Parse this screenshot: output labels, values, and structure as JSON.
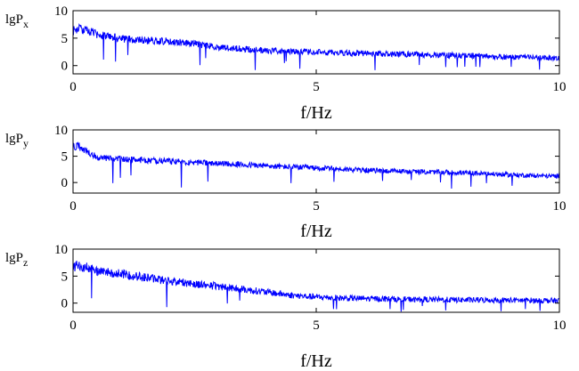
{
  "chart_data": [
    {
      "type": "line",
      "ylabel": "lgP",
      "ylabel_sub": "x",
      "xlabel": "f/Hz",
      "xlim": [
        0,
        10
      ],
      "ylim": [
        -1.5,
        10
      ],
      "xticks": [
        "0",
        "5",
        "10"
      ],
      "yticks": [
        "0",
        "5",
        "10"
      ],
      "grid": false,
      "series": [
        {
          "color": "#0000ff",
          "trend_x": [
            0,
            0.1,
            0.3,
            0.5,
            1,
            1.5,
            2,
            2.5,
            3,
            4,
            5,
            6,
            7,
            8,
            9,
            10
          ],
          "trend_y": [
            6.6,
            7.0,
            6.5,
            5.9,
            5.1,
            4.8,
            4.6,
            4.2,
            3.5,
            2.9,
            2.6,
            2.4,
            2.2,
            2.0,
            1.7,
            1.5
          ],
          "noise_amplitude": 1.0,
          "spike_minimum": -1.0
        }
      ]
    },
    {
      "type": "line",
      "ylabel": "lgP",
      "ylabel_sub": "y",
      "xlabel": "f/Hz",
      "xlim": [
        0,
        10
      ],
      "ylim": [
        -2,
        10
      ],
      "xticks": [
        "0",
        "5",
        "10"
      ],
      "yticks": [
        "0",
        "5",
        "10"
      ],
      "grid": false,
      "series": [
        {
          "color": "#0000ff",
          "trend_x": [
            0,
            0.1,
            0.3,
            0.5,
            1,
            1.5,
            2,
            3,
            4,
            5,
            6,
            7,
            8,
            9,
            10
          ],
          "trend_y": [
            7.0,
            7.2,
            6.0,
            5.0,
            4.6,
            4.4,
            4.2,
            3.8,
            3.3,
            2.9,
            2.5,
            2.2,
            2.0,
            1.6,
            1.3
          ],
          "noise_amplitude": 0.9,
          "spike_minimum": -1.2
        }
      ]
    },
    {
      "type": "line",
      "ylabel": "lgP",
      "ylabel_sub": "z",
      "xlabel": "f/Hz",
      "xlim": [
        0,
        10
      ],
      "ylim": [
        -1.7,
        10
      ],
      "xticks": [
        "0",
        "5",
        "10"
      ],
      "yticks": [
        "0",
        "5",
        "10"
      ],
      "grid": false,
      "series": [
        {
          "color": "#0000ff",
          "trend_x": [
            0,
            0.1,
            0.3,
            0.5,
            1,
            1.5,
            2,
            3,
            4,
            4.5,
            5,
            5.5,
            6,
            7,
            8,
            9,
            10
          ],
          "trend_y": [
            7.0,
            7.3,
            6.9,
            6.3,
            5.6,
            5.0,
            4.3,
            3.3,
            2.2,
            1.6,
            1.3,
            1.1,
            1.0,
            0.85,
            0.75,
            0.7,
            0.6
          ],
          "noise_amplitude": 1.2,
          "spike_minimum": -1.6
        }
      ]
    }
  ]
}
